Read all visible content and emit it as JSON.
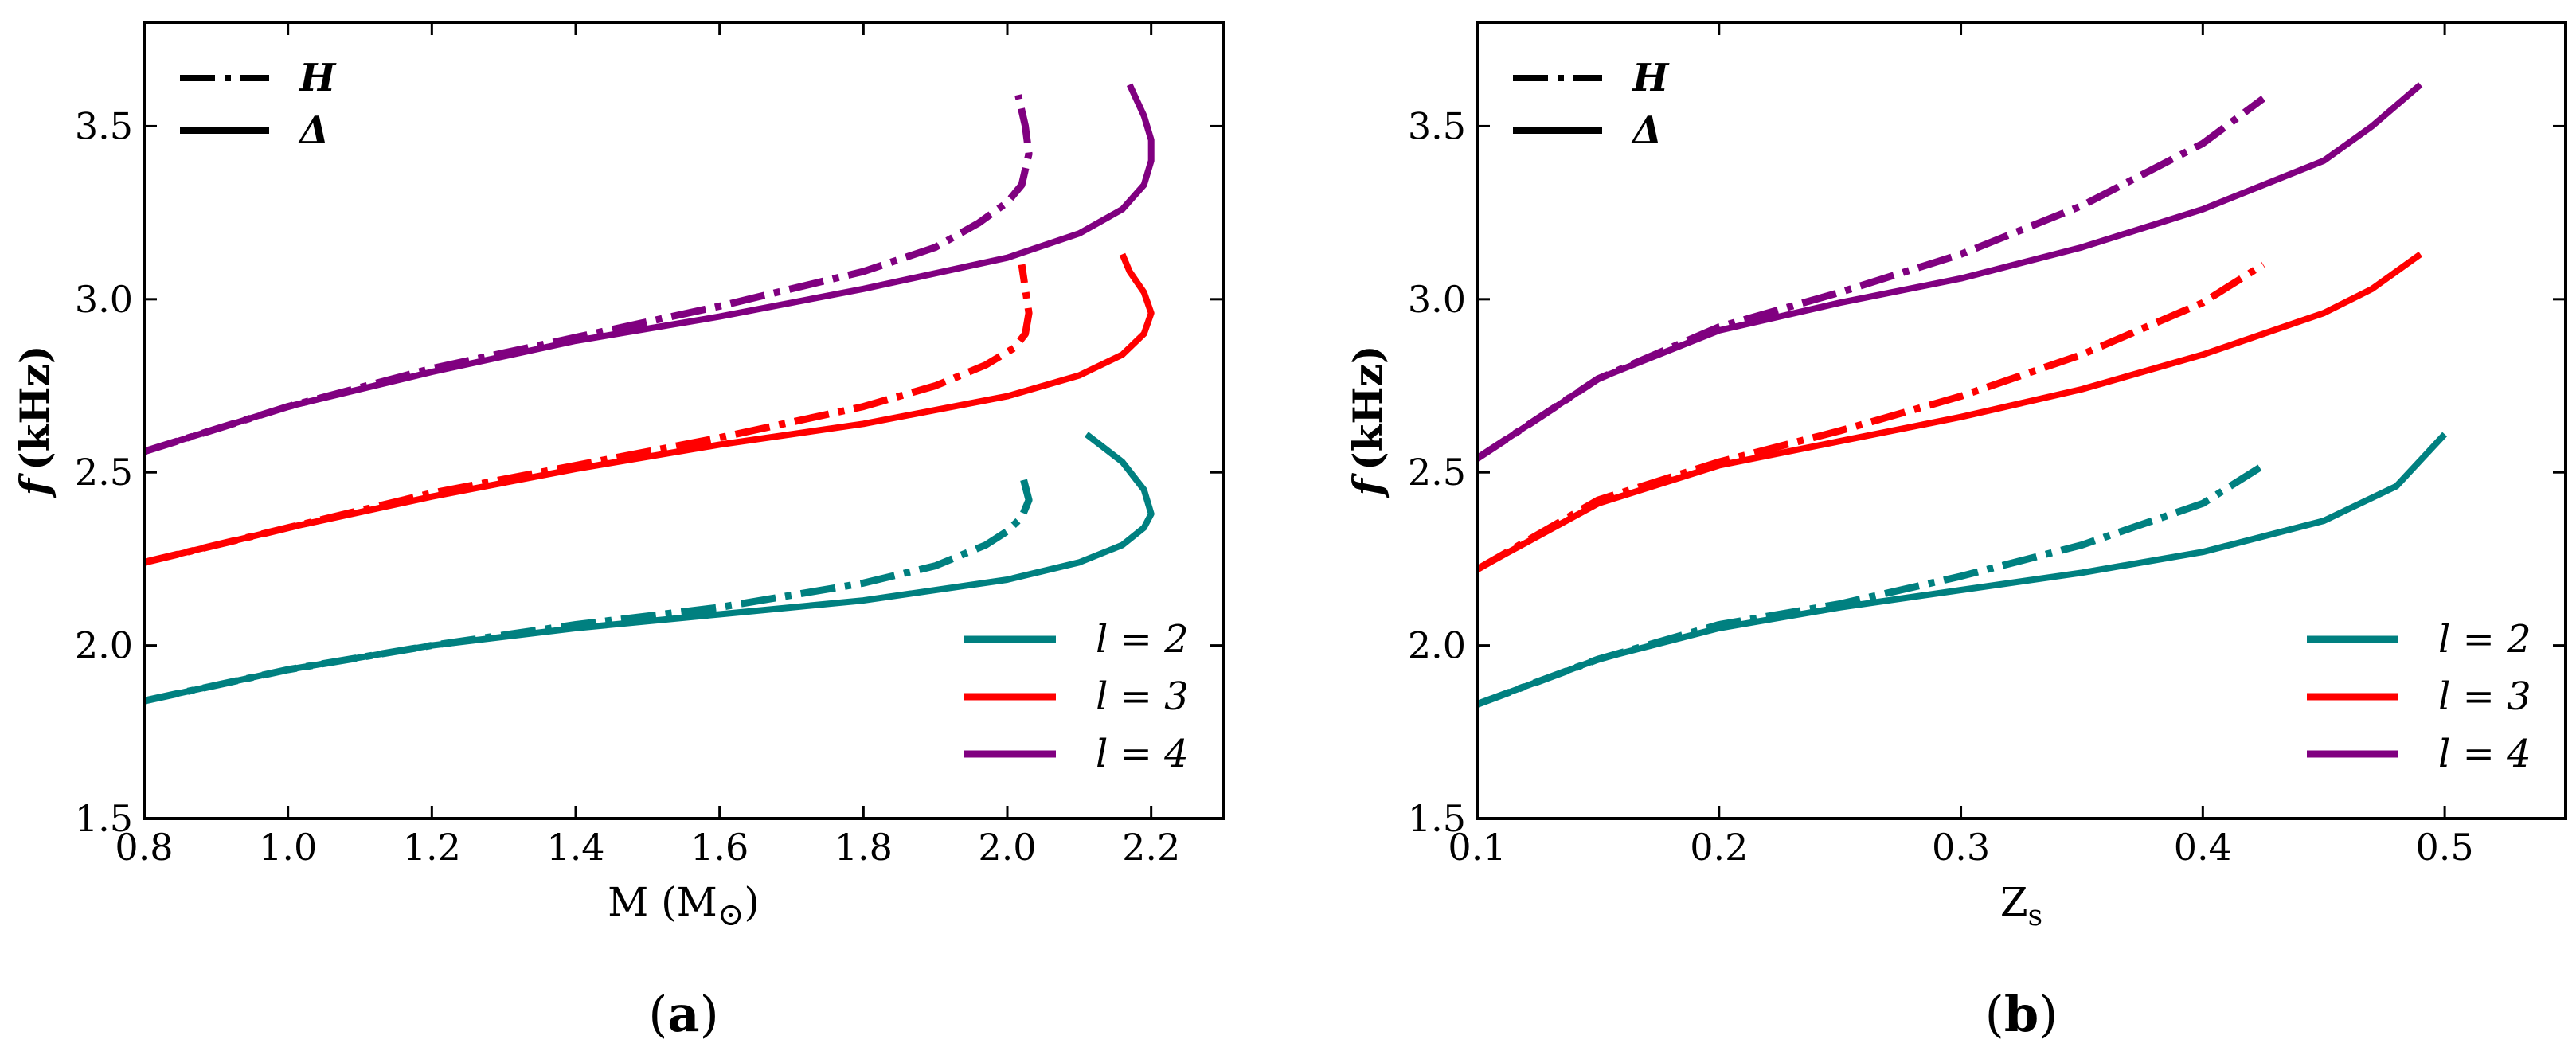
{
  "figure": {
    "line_styles_legend": [
      {
        "style": "dashdot",
        "label": "H"
      },
      {
        "style": "solid",
        "label": "Δ"
      }
    ],
    "colors": {
      "l2": "#008080",
      "l3": "#ff0000",
      "l4": "#800080"
    }
  },
  "chart_data": [
    {
      "type": "line",
      "panel": "a",
      "caption": "(a)",
      "caption_letter": "a",
      "xlabel": "M (M",
      "xlabel_symbol": "⊙",
      "ylabel_symbol": "f",
      "ylabel_unit": "(kHz)",
      "xlim": [
        0.8,
        2.3
      ],
      "ylim": [
        1.5,
        3.8
      ],
      "xticks": [
        0.8,
        1.0,
        1.2,
        1.4,
        1.6,
        1.8,
        2.0,
        2.2
      ],
      "xtick_labels": [
        "0.8",
        "1.0",
        "1.2",
        "1.4",
        "1.6",
        "1.8",
        "2.0",
        "2.2"
      ],
      "yticks": [
        1.5,
        2.0,
        2.5,
        3.0,
        3.5
      ],
      "ytick_labels": [
        "1.5",
        "2.0",
        "2.5",
        "3.0",
        "3.5"
      ],
      "legend": [
        {
          "label": "l = 2",
          "color": "#008080"
        },
        {
          "label": "l = 3",
          "color": "#ff0000"
        },
        {
          "label": "l = 4",
          "color": "#800080"
        }
      ],
      "series": [
        {
          "name": "l=2 Δ",
          "l": 2,
          "style": "solid",
          "color": "#008080",
          "x": [
            0.8,
            1.0,
            1.2,
            1.4,
            1.6,
            1.8,
            2.0,
            2.1,
            2.16,
            2.19,
            2.2,
            2.19,
            2.16,
            2.11
          ],
          "y": [
            1.84,
            1.93,
            2.0,
            2.05,
            2.09,
            2.13,
            2.19,
            2.24,
            2.29,
            2.34,
            2.38,
            2.45,
            2.53,
            2.61
          ]
        },
        {
          "name": "l=2 H",
          "l": 2,
          "style": "dashdot",
          "color": "#008080",
          "x": [
            0.8,
            1.0,
            1.2,
            1.4,
            1.6,
            1.8,
            1.9,
            1.97,
            2.0,
            2.02,
            2.03,
            2.025,
            2.02
          ],
          "y": [
            1.84,
            1.93,
            2.0,
            2.06,
            2.11,
            2.18,
            2.23,
            2.29,
            2.33,
            2.37,
            2.42,
            2.46,
            2.5
          ]
        },
        {
          "name": "l=3 Δ",
          "l": 3,
          "style": "solid",
          "color": "#ff0000",
          "x": [
            0.8,
            1.0,
            1.2,
            1.4,
            1.6,
            1.8,
            2.0,
            2.1,
            2.16,
            2.19,
            2.2,
            2.19,
            2.17,
            2.16
          ],
          "y": [
            2.24,
            2.34,
            2.43,
            2.51,
            2.58,
            2.64,
            2.72,
            2.78,
            2.84,
            2.9,
            2.96,
            3.02,
            3.08,
            3.13
          ]
        },
        {
          "name": "l=3 H",
          "l": 3,
          "style": "dashdot",
          "color": "#ff0000",
          "x": [
            0.8,
            1.0,
            1.2,
            1.4,
            1.6,
            1.8,
            1.9,
            1.97,
            2.01,
            2.025,
            2.03,
            2.025,
            2.02
          ],
          "y": [
            2.24,
            2.34,
            2.44,
            2.52,
            2.6,
            2.69,
            2.75,
            2.81,
            2.86,
            2.9,
            2.96,
            3.03,
            3.1
          ]
        },
        {
          "name": "l=4 Δ",
          "l": 4,
          "style": "solid",
          "color": "#800080",
          "x": [
            0.8,
            1.0,
            1.2,
            1.4,
            1.6,
            1.8,
            2.0,
            2.1,
            2.16,
            2.19,
            2.2,
            2.2,
            2.19,
            2.17
          ],
          "y": [
            2.56,
            2.69,
            2.79,
            2.88,
            2.95,
            3.03,
            3.12,
            3.19,
            3.26,
            3.33,
            3.4,
            3.46,
            3.53,
            3.62
          ]
        },
        {
          "name": "l=4 H",
          "l": 4,
          "style": "dashdot",
          "color": "#800080",
          "x": [
            0.8,
            1.0,
            1.2,
            1.4,
            1.6,
            1.8,
            1.9,
            1.96,
            2.0,
            2.02,
            2.03,
            2.025,
            2.015
          ],
          "y": [
            2.56,
            2.69,
            2.8,
            2.89,
            2.98,
            3.08,
            3.15,
            3.22,
            3.28,
            3.33,
            3.42,
            3.5,
            3.59
          ]
        }
      ]
    },
    {
      "type": "line",
      "panel": "b",
      "caption": "(b)",
      "caption_letter": "b",
      "xlabel": "Z",
      "xlabel_sub": "s",
      "ylabel_symbol": "f",
      "ylabel_unit": "(kHz)",
      "xlim": [
        0.1,
        0.55
      ],
      "ylim": [
        1.5,
        3.8
      ],
      "xticks": [
        0.1,
        0.2,
        0.3,
        0.4,
        0.5
      ],
      "xtick_labels": [
        "0.1",
        "0.2",
        "0.3",
        "0.4",
        "0.5"
      ],
      "yticks": [
        1.5,
        2.0,
        2.5,
        3.0,
        3.5
      ],
      "ytick_labels": [
        "1.5",
        "2.0",
        "2.5",
        "3.0",
        "3.5"
      ],
      "legend": [
        {
          "label": "l = 2",
          "color": "#008080"
        },
        {
          "label": "l = 3",
          "color": "#ff0000"
        },
        {
          "label": "l = 4",
          "color": "#800080"
        }
      ],
      "series": [
        {
          "name": "l=2 Δ",
          "l": 2,
          "style": "solid",
          "color": "#008080",
          "x": [
            0.1,
            0.15,
            0.2,
            0.25,
            0.3,
            0.35,
            0.4,
            0.45,
            0.48,
            0.5
          ],
          "y": [
            1.83,
            1.96,
            2.05,
            2.11,
            2.16,
            2.21,
            2.27,
            2.36,
            2.46,
            2.61
          ]
        },
        {
          "name": "l=2 H",
          "l": 2,
          "style": "dashdot",
          "color": "#008080",
          "x": [
            0.1,
            0.15,
            0.2,
            0.25,
            0.3,
            0.35,
            0.4,
            0.425
          ],
          "y": [
            1.83,
            1.96,
            2.06,
            2.12,
            2.2,
            2.29,
            2.41,
            2.52
          ]
        },
        {
          "name": "l=3 Δ",
          "l": 3,
          "style": "solid",
          "color": "#ff0000",
          "x": [
            0.1,
            0.15,
            0.2,
            0.25,
            0.3,
            0.35,
            0.4,
            0.45,
            0.47,
            0.49
          ],
          "y": [
            2.22,
            2.41,
            2.52,
            2.59,
            2.66,
            2.74,
            2.84,
            2.96,
            3.03,
            3.13
          ]
        },
        {
          "name": "l=3 H",
          "l": 3,
          "style": "dashdot",
          "color": "#ff0000",
          "x": [
            0.1,
            0.15,
            0.2,
            0.25,
            0.3,
            0.35,
            0.4,
            0.425
          ],
          "y": [
            2.22,
            2.42,
            2.53,
            2.62,
            2.72,
            2.84,
            2.99,
            3.1
          ]
        },
        {
          "name": "l=4 Δ",
          "l": 4,
          "style": "solid",
          "color": "#800080",
          "x": [
            0.1,
            0.15,
            0.2,
            0.25,
            0.3,
            0.35,
            0.4,
            0.45,
            0.47,
            0.49
          ],
          "y": [
            2.54,
            2.77,
            2.91,
            2.99,
            3.06,
            3.15,
            3.26,
            3.4,
            3.5,
            3.62
          ]
        },
        {
          "name": "l=4 H",
          "l": 4,
          "style": "dashdot",
          "color": "#800080",
          "x": [
            0.1,
            0.15,
            0.2,
            0.25,
            0.3,
            0.35,
            0.4,
            0.425
          ],
          "y": [
            2.54,
            2.77,
            2.92,
            3.02,
            3.13,
            3.27,
            3.45,
            3.58
          ]
        }
      ]
    }
  ]
}
